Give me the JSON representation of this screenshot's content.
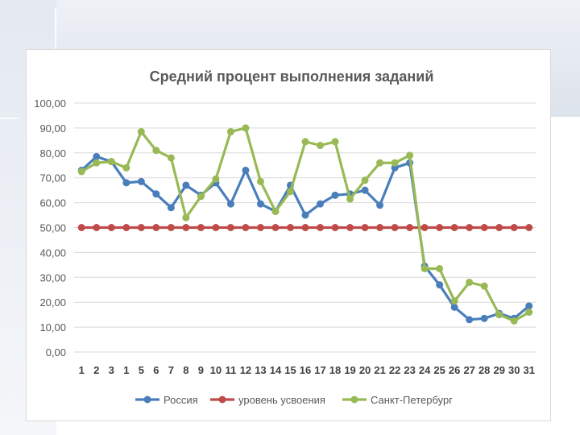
{
  "chart_data": {
    "type": "line",
    "title": "Средний процент выполнения заданий",
    "xlabel": "",
    "ylabel": "",
    "categories": [
      "1",
      "2",
      "3",
      "1",
      "5",
      "6",
      "7",
      "8",
      "9",
      "10",
      "11",
      "12",
      "13",
      "14",
      "15",
      "16",
      "17",
      "18",
      "19",
      "20",
      "21",
      "22",
      "23",
      "24",
      "25",
      "26",
      "27",
      "28",
      "29",
      "30",
      "31"
    ],
    "ylim": [
      0,
      100
    ],
    "yticks": [
      "0,00",
      "10,00",
      "20,00",
      "30,00",
      "40,00",
      "50,00",
      "60,00",
      "70,00",
      "80,00",
      "90,00",
      "100,00"
    ],
    "grid": true,
    "legend_position": "bottom",
    "series": [
      {
        "name": "Россия",
        "color": "#4a7ebb",
        "values": [
          73,
          78.5,
          76.5,
          68,
          68.5,
          63.5,
          58,
          67,
          63,
          68,
          59.5,
          73,
          59.5,
          56.5,
          67,
          55,
          59.5,
          63,
          63.5,
          65,
          59,
          74,
          76,
          34.5,
          27,
          18,
          13,
          13.5,
          15.5,
          13.5,
          18.5
        ]
      },
      {
        "name": "уровень усвоения",
        "color": "#be4b48",
        "values": [
          50,
          50,
          50,
          50,
          50,
          50,
          50,
          50,
          50,
          50,
          50,
          50,
          50,
          50,
          50,
          50,
          50,
          50,
          50,
          50,
          50,
          50,
          50,
          50,
          50,
          50,
          50,
          50,
          50,
          50,
          50
        ]
      },
      {
        "name": "Санкт-Петербург",
        "color": "#98b954",
        "values": [
          72.5,
          76,
          76.5,
          74,
          88.5,
          81,
          78,
          54,
          62.5,
          69.5,
          88.5,
          90,
          68.5,
          56.5,
          64.5,
          84.5,
          83,
          84.5,
          61.5,
          69,
          76,
          76,
          79,
          33.5,
          33.5,
          20.5,
          28,
          26.5,
          15,
          12.5,
          16
        ]
      }
    ]
  }
}
